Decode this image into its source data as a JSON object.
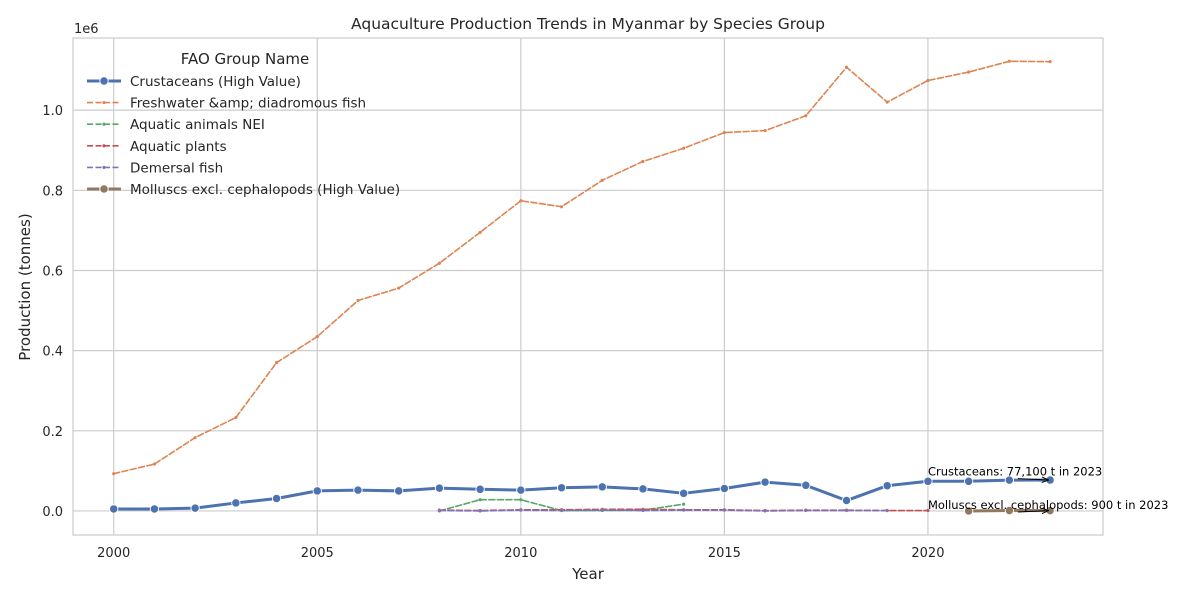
{
  "chart_data": {
    "type": "line",
    "title": "Aquaculture Production Trends in Myanmar by Species Group",
    "xlabel": "Year",
    "ylabel": "Production (tonnes)",
    "y_scale_label": "1e6",
    "xlim": [
      1999,
      2024.3
    ],
    "ylim": [
      -0.06,
      1.18
    ],
    "x_ticks": [
      2000,
      2005,
      2010,
      2015,
      2020
    ],
    "x_tick_labels": [
      "2000",
      "2005",
      "2010",
      "2015",
      "2020"
    ],
    "y_ticks": [
      0.0,
      0.2,
      0.4,
      0.6,
      0.8,
      1.0
    ],
    "y_tick_labels": [
      "0.0",
      "0.2",
      "0.4",
      "0.6",
      "0.8",
      "1.0"
    ],
    "grid": true,
    "legend_position": "top-left",
    "legend_title": "FAO Group Name",
    "series": [
      {
        "name": "Crustaceans (High Value)",
        "color": "#4c72b0",
        "style": "solid-thick-markers",
        "x": [
          2000,
          2001,
          2002,
          2003,
          2004,
          2005,
          2006,
          2007,
          2008,
          2009,
          2010,
          2011,
          2012,
          2013,
          2014,
          2015,
          2016,
          2017,
          2018,
          2019,
          2020,
          2021,
          2022,
          2023
        ],
        "y": [
          0.005,
          0.005,
          0.007,
          0.02,
          0.031,
          0.05,
          0.052,
          0.05,
          0.057,
          0.054,
          0.052,
          0.058,
          0.06,
          0.055,
          0.044,
          0.056,
          0.072,
          0.064,
          0.026,
          0.063,
          0.074,
          0.074,
          0.077,
          0.0771
        ]
      },
      {
        "name": "Freshwater &amp; diadromous fish",
        "color": "#dd8452",
        "style": "dashed",
        "x": [
          2000,
          2001,
          2002,
          2003,
          2004,
          2005,
          2006,
          2007,
          2008,
          2009,
          2010,
          2011,
          2012,
          2013,
          2014,
          2015,
          2016,
          2017,
          2018,
          2019,
          2020,
          2021,
          2022,
          2023
        ],
        "y": [
          0.093,
          0.117,
          0.183,
          0.233,
          0.37,
          0.435,
          0.525,
          0.556,
          0.618,
          0.695,
          0.774,
          0.759,
          0.825,
          0.872,
          0.905,
          0.944,
          0.949,
          0.986,
          1.107,
          1.02,
          1.074,
          1.095,
          1.122,
          1.121
        ]
      },
      {
        "name": "Aquatic animals NEI",
        "color": "#55a868",
        "style": "dashed",
        "x": [
          2008,
          2009,
          2010,
          2011,
          2012,
          2013,
          2014
        ],
        "y": [
          0.0,
          0.028,
          0.028,
          0.001,
          0.001,
          0.002,
          0.017
        ]
      },
      {
        "name": "Aquatic plants",
        "color": "#c44e52",
        "style": "dashed",
        "x": [
          2008,
          2009,
          2010,
          2011,
          2012,
          2013,
          2014,
          2015,
          2016,
          2017,
          2018,
          2019,
          2020
        ],
        "y": [
          0.002,
          0.001,
          0.003,
          0.003,
          0.004,
          0.004,
          0.003,
          0.003,
          0.001,
          0.002,
          0.002,
          0.001,
          0.001
        ]
      },
      {
        "name": "Demersal fish",
        "color": "#8172b3",
        "style": "dashed",
        "x": [
          2008,
          2009,
          2010,
          2011,
          2012,
          2013,
          2014,
          2015,
          2016,
          2017,
          2018,
          2019
        ],
        "y": [
          0.001,
          0.0,
          0.002,
          0.001,
          0.002,
          0.001,
          0.002,
          0.002,
          0.0,
          0.001,
          0.001,
          0.001
        ]
      },
      {
        "name": "Molluscs excl. cephalopods (High Value)",
        "color": "#937860",
        "style": "solid-thick-markers",
        "x": [
          2021,
          2022,
          2023
        ],
        "y": [
          0.0,
          0.001,
          0.0009
        ]
      }
    ],
    "annotations": [
      {
        "text": "Crustaceans: 77,100 t in 2023",
        "text_x": 2020,
        "text_y": 0.088,
        "arrow_to_x": 2023,
        "arrow_to_y": 0.0771
      },
      {
        "text": "Molluscs excl. cephalopods: 900 t in 2023",
        "text_x": 2020,
        "text_y": 0.005,
        "arrow_to_x": 2023,
        "arrow_to_y": 0.0009
      }
    ]
  }
}
